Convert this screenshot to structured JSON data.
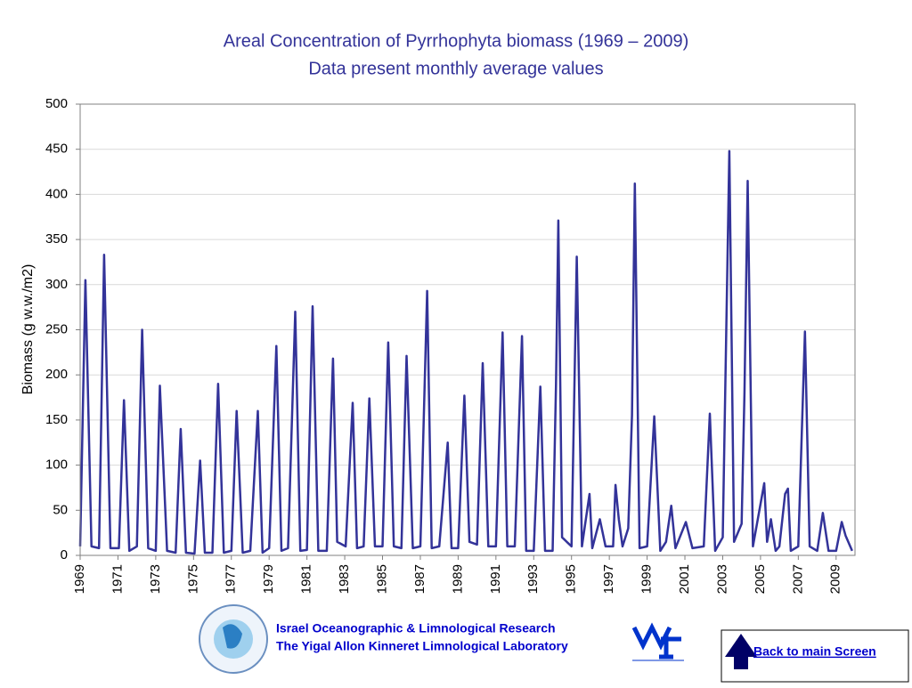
{
  "chart_data": {
    "type": "line",
    "title": "Areal Concentration of Pyrrhophyta biomass (1969 – 2009)",
    "subtitle": "Data present monthly average values",
    "y_label": "Biomass (g w.w./m2)",
    "color": "#333399",
    "xlim": [
      1969,
      2010
    ],
    "xticks": [
      1969,
      1971,
      1973,
      1975,
      1977,
      1979,
      1981,
      1983,
      1985,
      1987,
      1989,
      1991,
      1993,
      1995,
      1997,
      1999,
      2001,
      2003,
      2005,
      2007,
      2009
    ],
    "ylim": [
      0,
      500
    ],
    "yticks": [
      0,
      50,
      100,
      150,
      200,
      250,
      300,
      350,
      400,
      450,
      500
    ],
    "grid": true,
    "x": [
      1969.0,
      1969.28,
      1969.6,
      1970.0,
      1970.27,
      1970.6,
      1971.05,
      1971.32,
      1971.6,
      1972.0,
      1972.28,
      1972.6,
      1973.0,
      1973.22,
      1973.6,
      1974.05,
      1974.32,
      1974.6,
      1975.05,
      1975.35,
      1975.6,
      1976.0,
      1976.3,
      1976.6,
      1977.0,
      1977.28,
      1977.6,
      1978.0,
      1978.4,
      1978.65,
      1979.0,
      1979.38,
      1979.65,
      1980.0,
      1980.38,
      1980.65,
      1981.0,
      1981.3,
      1981.6,
      1982.05,
      1982.38,
      1982.6,
      1983.05,
      1983.42,
      1983.65,
      1984.0,
      1984.3,
      1984.6,
      1985.0,
      1985.3,
      1985.6,
      1986.0,
      1986.27,
      1986.6,
      1987.0,
      1987.36,
      1987.6,
      1988.0,
      1988.45,
      1988.65,
      1989.0,
      1989.33,
      1989.6,
      1990.0,
      1990.3,
      1990.6,
      1991.0,
      1991.35,
      1991.6,
      1992.0,
      1992.38,
      1992.6,
      1993.0,
      1993.35,
      1993.6,
      1994.0,
      1994.18,
      1994.3,
      1994.5,
      1995.0,
      1995.28,
      1995.55,
      1995.95,
      1996.1,
      1996.5,
      1996.8,
      1997.2,
      1997.33,
      1997.5,
      1997.7,
      1998.0,
      1998.2,
      1998.35,
      1998.6,
      1999.0,
      1999.38,
      1999.7,
      2000.0,
      2000.28,
      2000.5,
      2001.05,
      2001.4,
      2002.0,
      2002.32,
      2002.6,
      2003.0,
      2003.35,
      2003.6,
      2004.0,
      2004.15,
      2004.32,
      2004.6,
      2005.2,
      2005.35,
      2005.55,
      2005.8,
      2006.0,
      2006.3,
      2006.45,
      2006.6,
      2007.0,
      2007.35,
      2007.6,
      2008.0,
      2008.3,
      2008.6,
      2009.0,
      2009.3,
      2009.5,
      2009.85
    ],
    "values": [
      10,
      305,
      10,
      8,
      333,
      8,
      8,
      172,
      5,
      10,
      250,
      8,
      5,
      188,
      5,
      3,
      140,
      3,
      2,
      105,
      3,
      3,
      190,
      3,
      5,
      160,
      3,
      5,
      160,
      3,
      8,
      232,
      5,
      8,
      270,
      5,
      6,
      276,
      5,
      5,
      218,
      15,
      10,
      169,
      8,
      10,
      174,
      10,
      10,
      236,
      10,
      8,
      221,
      8,
      10,
      293,
      8,
      10,
      125,
      8,
      8,
      177,
      15,
      12,
      213,
      10,
      10,
      247,
      10,
      10,
      243,
      5,
      5,
      187,
      5,
      5,
      190,
      371,
      20,
      10,
      331,
      10,
      68,
      8,
      40,
      10,
      10,
      78,
      40,
      10,
      30,
      155,
      412,
      8,
      10,
      154,
      5,
      15,
      55,
      8,
      37,
      8,
      10,
      157,
      5,
      20,
      448,
      15,
      35,
      180,
      415,
      10,
      80,
      15,
      40,
      5,
      10,
      68,
      74,
      5,
      10,
      248,
      10,
      5,
      47,
      5,
      5,
      37,
      22,
      5
    ]
  },
  "footer": {
    "institute": "Israel Oceanographic & Limnological Research",
    "lab": "The Yigal Allon Kinneret Limnological Laboratory",
    "button": "Back to main Screen"
  }
}
